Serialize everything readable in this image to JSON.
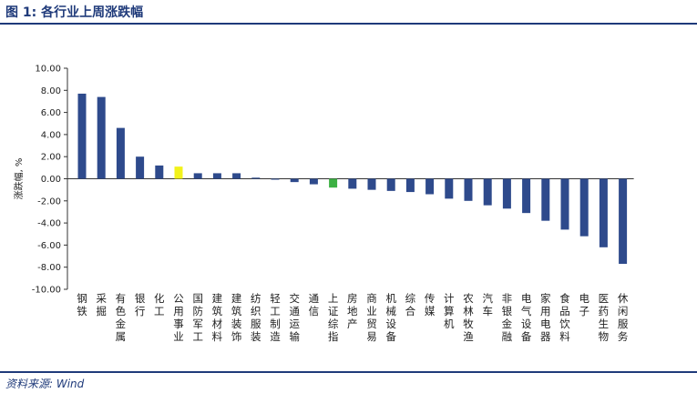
{
  "header": {
    "title": "图 1:  各行业上周涨跌幅"
  },
  "footer": {
    "source": "资料来源: Wind"
  },
  "colors": {
    "bar": "#2e4a8c",
    "highlight_yellow": "#f2f21a",
    "highlight_green": "#3cb043",
    "brand": "#1f3a7a"
  },
  "chart_data": {
    "type": "bar",
    "title": "",
    "xlabel": "",
    "ylabel": "涨跌幅, %",
    "ylim": [
      -10,
      10
    ],
    "yticks": [
      "10.00",
      "8.00",
      "6.00",
      "4.00",
      "2.00",
      "0.00",
      "-2.00",
      "-4.00",
      "-6.00",
      "-8.00",
      "-10.00"
    ],
    "grid": false,
    "categories": [
      "钢铁",
      "采掘",
      "有色金属",
      "银行",
      "化工",
      "公用事业",
      "国防军工",
      "建筑材料",
      "建筑装饰",
      "纺织服装",
      "轻工制造",
      "交通运输",
      "通信",
      "上证综指",
      "房地产",
      "商业贸易",
      "机械设备",
      "综合",
      "传媒",
      "计算机",
      "农林牧渔",
      "汽车",
      "非银金融",
      "电气设备",
      "家用电器",
      "食品饮料",
      "电子",
      "医药生物",
      "休闲服务"
    ],
    "values": [
      7.7,
      7.4,
      4.6,
      2.0,
      1.2,
      1.1,
      0.5,
      0.5,
      0.5,
      0.1,
      -0.05,
      -0.3,
      -0.5,
      -0.8,
      -0.9,
      -1.0,
      -1.1,
      -1.2,
      -1.4,
      -1.8,
      -2.0,
      -2.4,
      -2.7,
      -3.1,
      -3.8,
      -4.6,
      -5.2,
      -6.2,
      -7.7
    ],
    "bar_colors": [
      "#2e4a8c",
      "#2e4a8c",
      "#2e4a8c",
      "#2e4a8c",
      "#2e4a8c",
      "#f2f21a",
      "#2e4a8c",
      "#2e4a8c",
      "#2e4a8c",
      "#2e4a8c",
      "#2e4a8c",
      "#2e4a8c",
      "#2e4a8c",
      "#3cb043",
      "#2e4a8c",
      "#2e4a8c",
      "#2e4a8c",
      "#2e4a8c",
      "#2e4a8c",
      "#2e4a8c",
      "#2e4a8c",
      "#2e4a8c",
      "#2e4a8c",
      "#2e4a8c",
      "#2e4a8c",
      "#2e4a8c",
      "#2e4a8c",
      "#2e4a8c",
      "#2e4a8c"
    ]
  }
}
